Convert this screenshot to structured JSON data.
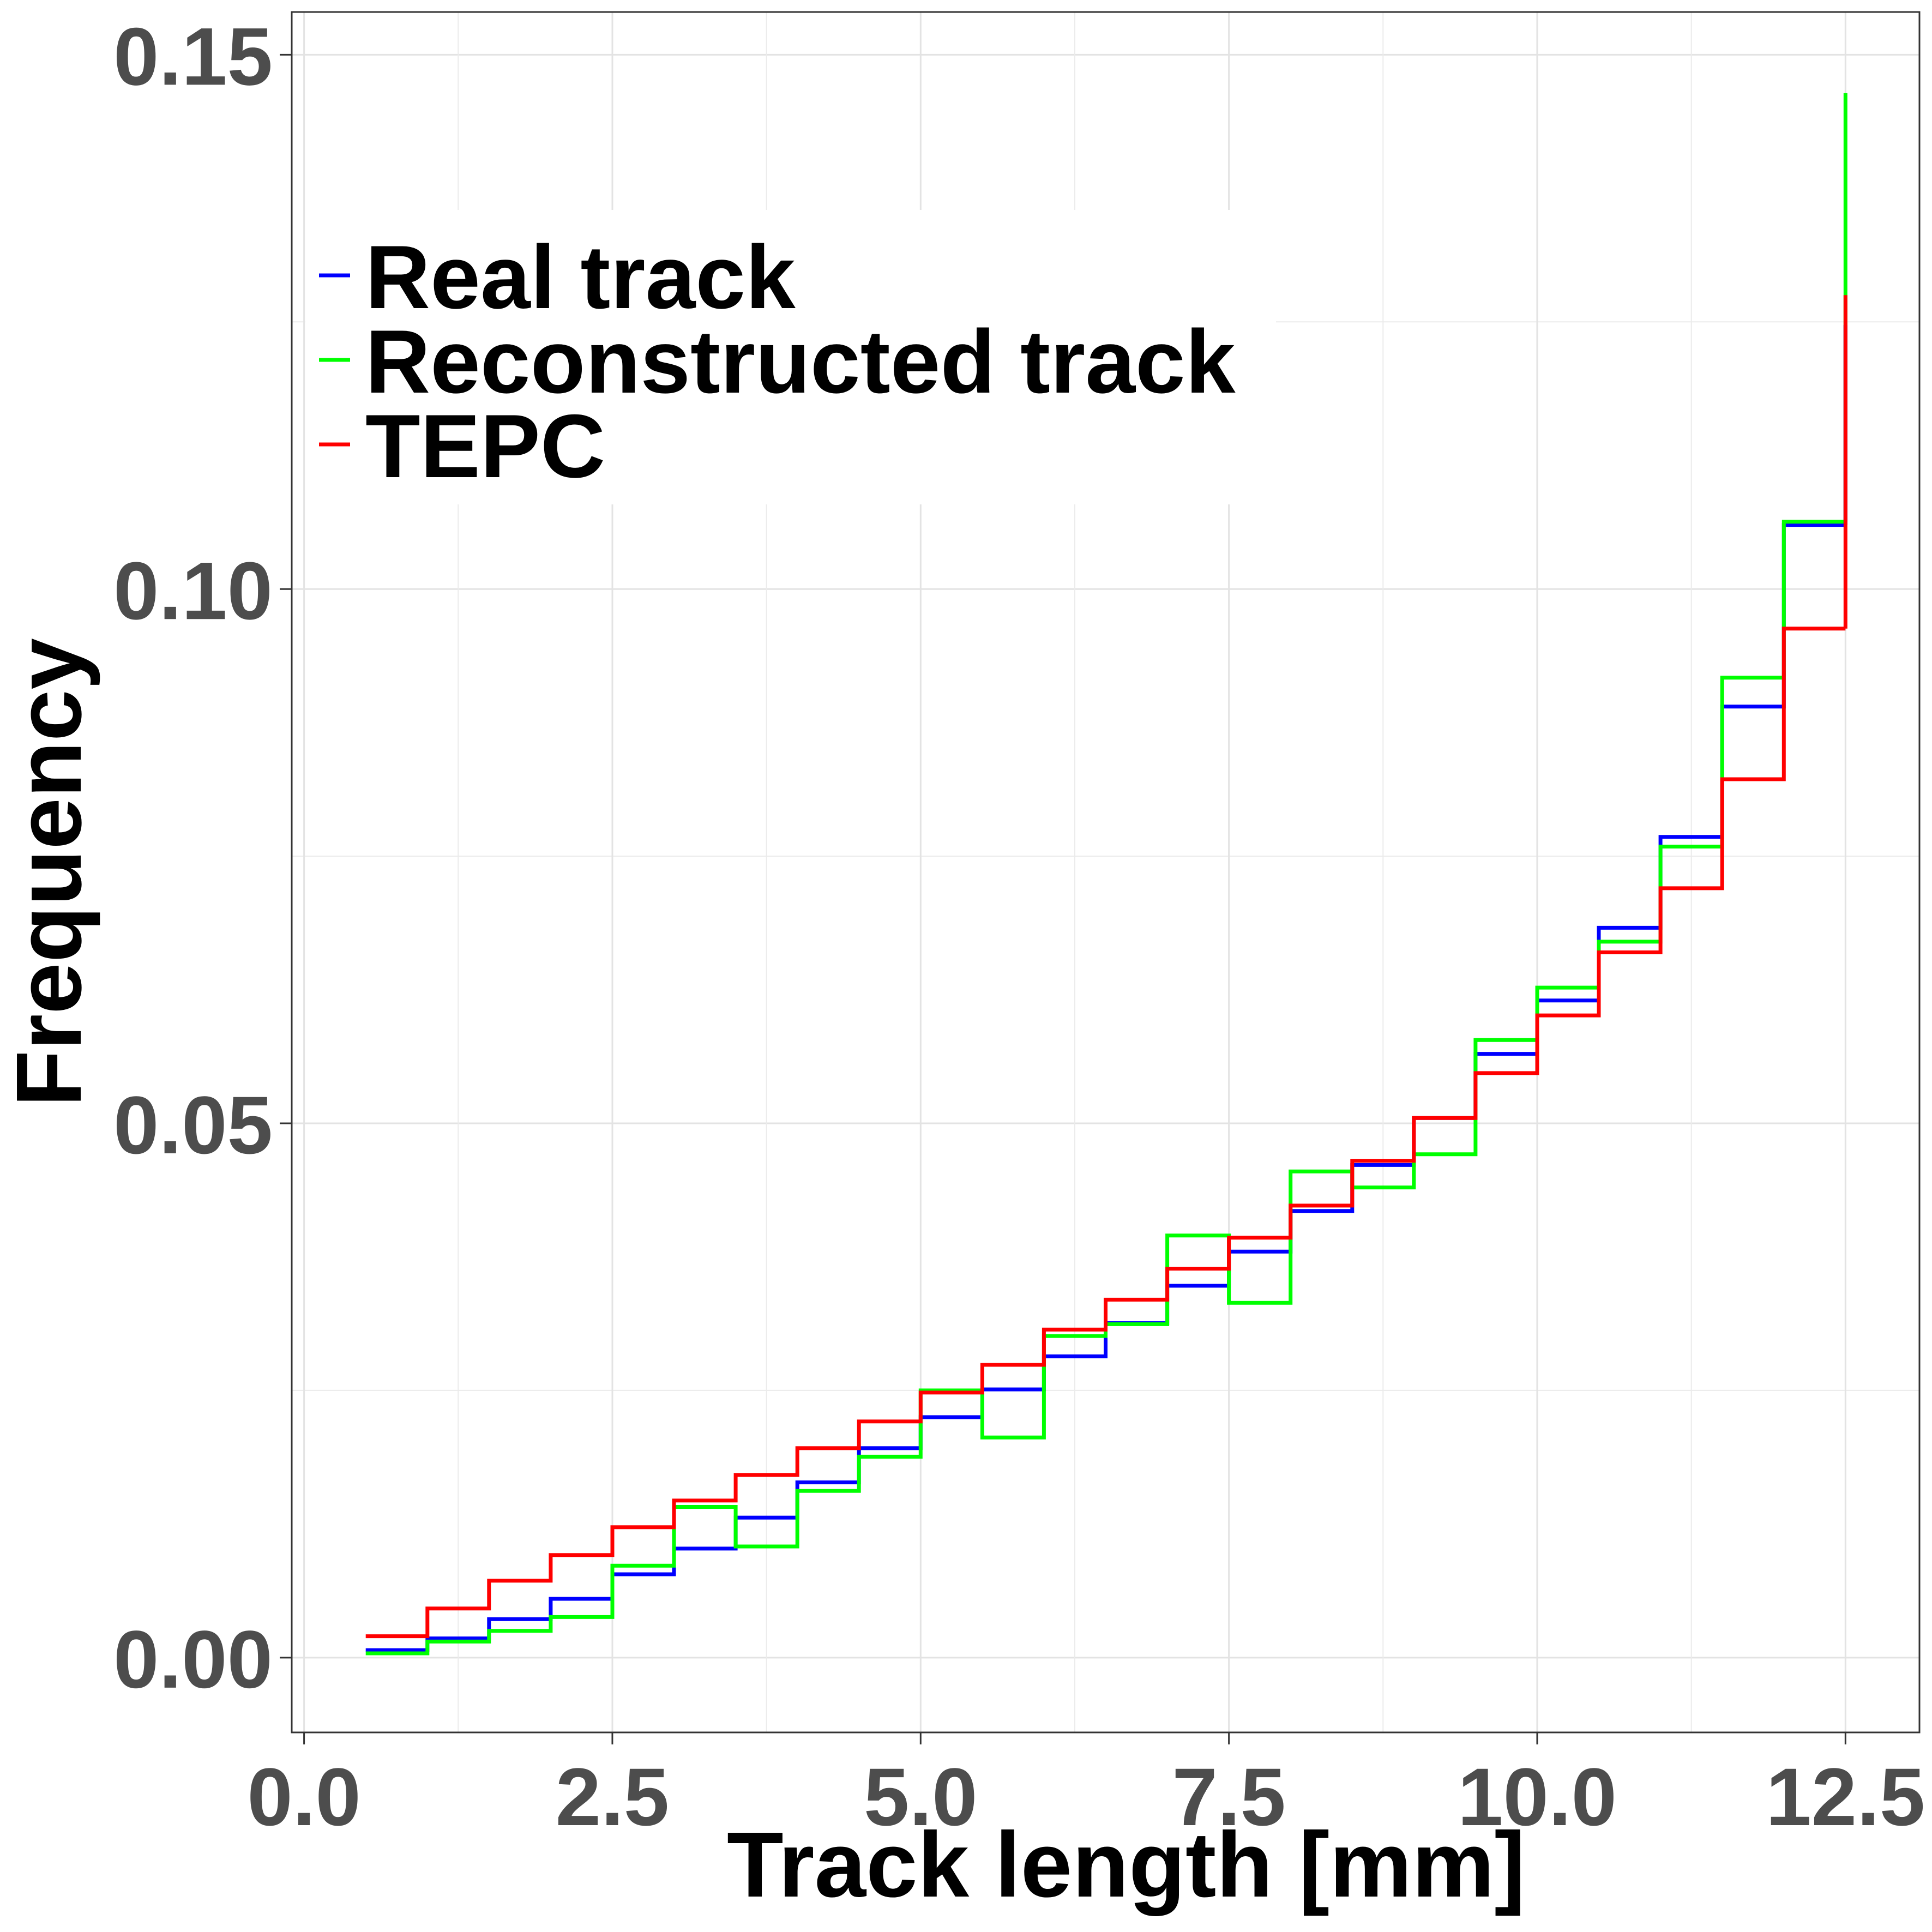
{
  "chart_data": {
    "type": "line",
    "step": true,
    "xlabel": "Track length [mm]",
    "ylabel": "Frequency",
    "xlim": [
      -0.1,
      13.1
    ],
    "ylim": [
      -0.007,
      0.154
    ],
    "x_ticks": [
      0.0,
      2.5,
      5.0,
      7.5,
      10.0,
      12.5
    ],
    "x_tick_labels": [
      "0.0",
      "2.5",
      "5.0",
      "7.5",
      "10.0",
      "12.5"
    ],
    "y_ticks": [
      0.0,
      0.05,
      0.1,
      0.15
    ],
    "y_tick_labels": [
      "0.00",
      "0.05",
      "0.10",
      "0.15"
    ],
    "y_minor_ticks": [
      0.025,
      0.075,
      0.125
    ],
    "grid": true,
    "legend_position": "top-left",
    "bin_edges": [
      0.5,
      1.0,
      1.5,
      2.0,
      2.5,
      3.0,
      3.5,
      4.0,
      4.5,
      5.0,
      5.5,
      6.0,
      6.5,
      7.0,
      7.5,
      8.0,
      8.5,
      9.0,
      9.5,
      10.0,
      10.5,
      11.0,
      11.5,
      12.0,
      12.5
    ],
    "series": [
      {
        "name": "Real track",
        "color": "#0000ff",
        "values": [
          0.0007,
          0.0018,
          0.0036,
          0.0055,
          0.0078,
          0.0102,
          0.0131,
          0.0164,
          0.0196,
          0.0225,
          0.0251,
          0.0282,
          0.0313,
          0.0348,
          0.038,
          0.0418,
          0.0461,
          0.0505,
          0.0565,
          0.0615,
          0.0683,
          0.0768,
          0.089,
          0.106
        ]
      },
      {
        "name": "Reconstructed track",
        "color": "#00ff00",
        "values": [
          0.0004,
          0.0015,
          0.0025,
          0.0038,
          0.0086,
          0.0141,
          0.0104,
          0.0156,
          0.0188,
          0.025,
          0.0206,
          0.0301,
          0.0312,
          0.0395,
          0.0332,
          0.0455,
          0.044,
          0.0471,
          0.0578,
          0.0627,
          0.067,
          0.0759,
          0.0917,
          0.1063
        ]
      },
      {
        "name": "TEPC",
        "color": "#ff0000",
        "values": [
          0.002,
          0.0046,
          0.0072,
          0.0096,
          0.0122,
          0.0147,
          0.0171,
          0.0196,
          0.0221,
          0.0248,
          0.0274,
          0.0307,
          0.0335,
          0.0364,
          0.0393,
          0.0423,
          0.0465,
          0.0505,
          0.0547,
          0.0601,
          0.066,
          0.072,
          0.0822,
          0.0963
        ]
      }
    ],
    "end_spikes": [
      {
        "series": "Reconstructed track",
        "x": 12.5,
        "from": 0.1063,
        "to": 0.1464
      },
      {
        "series": "Real track",
        "x": 12.5,
        "from": 0.106,
        "to": 0.1247
      },
      {
        "series": "TEPC",
        "x": 12.5,
        "from": 0.0963,
        "to": 0.1275
      }
    ]
  }
}
